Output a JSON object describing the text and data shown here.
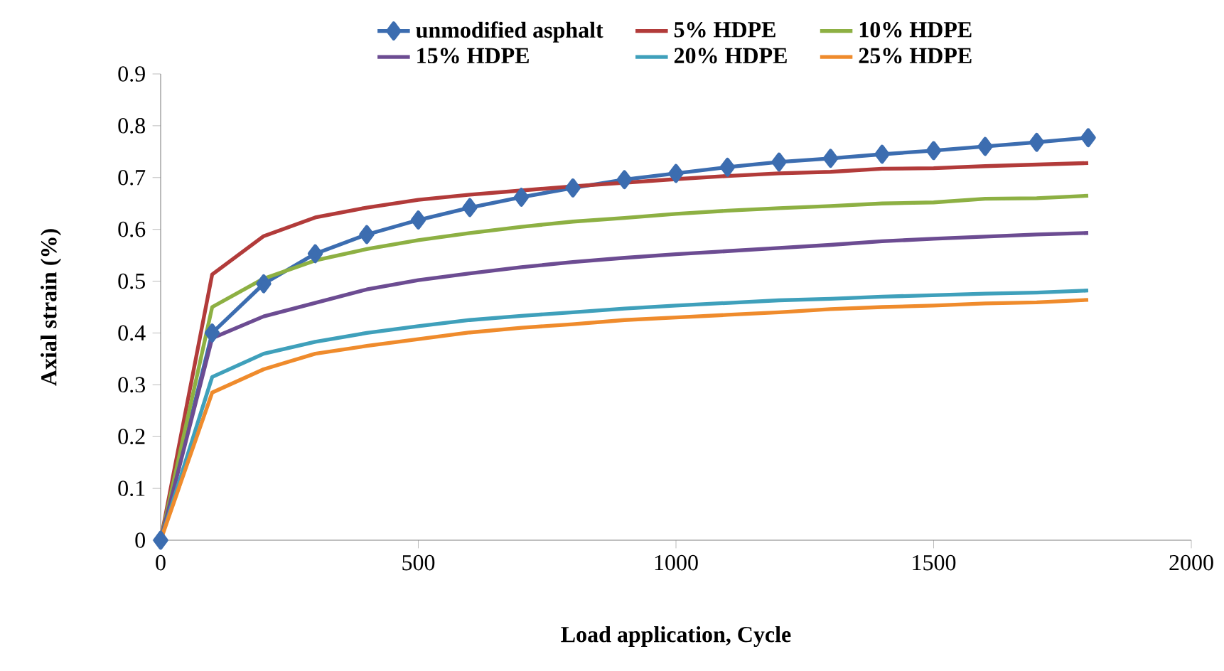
{
  "chart_data": {
    "type": "line",
    "xlabel": "Load application, Cycle",
    "ylabel": "Axial strain (%)",
    "x": [
      0,
      100,
      200,
      300,
      400,
      500,
      600,
      700,
      800,
      900,
      1000,
      1100,
      1200,
      1300,
      1400,
      1500,
      1600,
      1700,
      1800
    ],
    "series": [
      {
        "name": "unmodified asphalt",
        "color": "#3c6db0",
        "marker": "diamond",
        "values": [
          0,
          0.4,
          0.495,
          0.553,
          0.59,
          0.618,
          0.642,
          0.662,
          0.68,
          0.696,
          0.708,
          0.72,
          0.73,
          0.737,
          0.745,
          0.752,
          0.76,
          0.768,
          0.777
        ]
      },
      {
        "name": "5% HDPE",
        "color": "#b23b3a",
        "values": [
          0,
          0.513,
          0.587,
          0.623,
          0.642,
          0.657,
          0.667,
          0.675,
          0.683,
          0.69,
          0.697,
          0.703,
          0.708,
          0.711,
          0.717,
          0.718,
          0.722,
          0.725,
          0.728
        ]
      },
      {
        "name": "10% HDPE",
        "color": "#8db043",
        "values": [
          0,
          0.45,
          0.505,
          0.54,
          0.562,
          0.579,
          0.593,
          0.605,
          0.615,
          0.622,
          0.63,
          0.636,
          0.641,
          0.645,
          0.65,
          0.652,
          0.659,
          0.66,
          0.665
        ]
      },
      {
        "name": "15% HDPE",
        "color": "#6c4c92",
        "values": [
          0,
          0.39,
          0.432,
          0.458,
          0.484,
          0.502,
          0.515,
          0.527,
          0.537,
          0.545,
          0.552,
          0.558,
          0.564,
          0.57,
          0.577,
          0.582,
          0.586,
          0.59,
          0.593
        ]
      },
      {
        "name": "20% HDPE",
        "color": "#3fa0bb",
        "values": [
          0,
          0.315,
          0.36,
          0.383,
          0.4,
          0.413,
          0.425,
          0.433,
          0.44,
          0.447,
          0.453,
          0.458,
          0.463,
          0.466,
          0.47,
          0.473,
          0.476,
          0.478,
          0.482
        ]
      },
      {
        "name": "25% HDPE",
        "color": "#ef8b2c",
        "values": [
          0,
          0.285,
          0.33,
          0.36,
          0.375,
          0.388,
          0.401,
          0.41,
          0.417,
          0.425,
          0.43,
          0.435,
          0.44,
          0.446,
          0.45,
          0.453,
          0.457,
          0.459,
          0.464
        ]
      }
    ],
    "xlim": [
      0,
      2000
    ],
    "xticks": [
      0,
      500,
      1000,
      1500,
      2000
    ],
    "ylim": [
      0,
      0.9
    ],
    "yticks": [
      0,
      0.1,
      0.2,
      0.3,
      0.4,
      0.5,
      0.6,
      0.7,
      0.8,
      0.9
    ],
    "grid": false,
    "legend": "top",
    "marker": "none",
    "line_style": "solid"
  }
}
